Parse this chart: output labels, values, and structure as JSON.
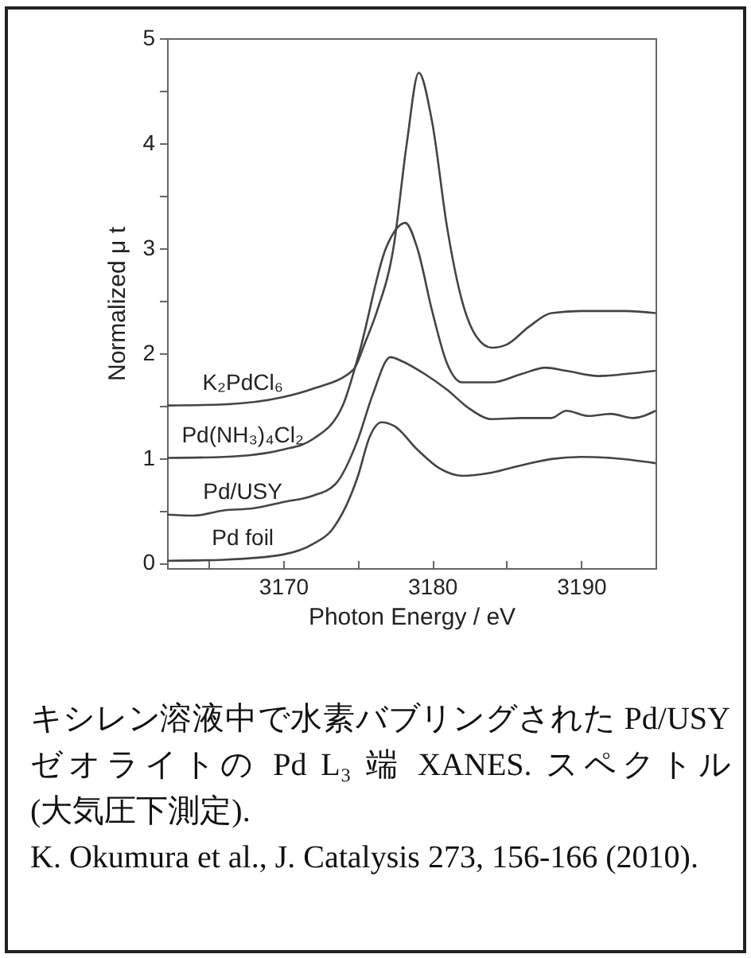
{
  "chart_data": {
    "type": "line",
    "xlabel": "Photon Energy /  eV",
    "ylabel": "Normalized μ t",
    "xlim": [
      3162.2,
      3195
    ],
    "ylim": [
      -0.05,
      5
    ],
    "xticks": [
      {
        "value": 3165,
        "label": null
      },
      3170,
      {
        "value": 3175,
        "label": null
      },
      3180,
      {
        "value": 3185,
        "label": null
      },
      3190
    ],
    "yticks": [
      0,
      {
        "value": 0.5,
        "label": null
      },
      1,
      {
        "value": 1.5,
        "label": null
      },
      2,
      {
        "value": 2.5,
        "label": null
      },
      3,
      {
        "value": 3.5,
        "label": null
      },
      4,
      {
        "value": 4.5,
        "label": null
      },
      5
    ],
    "grid": false,
    "legend": false,
    "series": [
      {
        "name": "K₂PdCl₆",
        "color": "#444444",
        "x": [
          3162.2,
          3166,
          3170,
          3172,
          3174.7,
          3175.5,
          3176.3,
          3177.4,
          3178.3,
          3179.1,
          3180,
          3181,
          3182,
          3183,
          3184,
          3185,
          3186.5,
          3188,
          3190,
          3193,
          3195
        ],
        "values": [
          1.5,
          1.51,
          1.58,
          1.66,
          1.84,
          2.1,
          2.4,
          3.0,
          4.0,
          4.67,
          4.2,
          3.2,
          2.5,
          2.15,
          2.05,
          2.08,
          2.25,
          2.38,
          2.4,
          2.4,
          2.38
        ]
      },
      {
        "name": "Pd(NH₃)₄Cl₂",
        "color": "#444444",
        "x": [
          3162.2,
          3166,
          3170,
          3172,
          3174,
          3175.1,
          3176.9,
          3178.2,
          3179,
          3180,
          3181,
          3182,
          3184,
          3186,
          3187.6,
          3189,
          3191.2,
          3193,
          3195
        ],
        "values": [
          1.0,
          1.01,
          1.08,
          1.18,
          1.5,
          2.0,
          3.0,
          3.24,
          3.0,
          2.4,
          1.9,
          1.72,
          1.72,
          1.8,
          1.86,
          1.83,
          1.78,
          1.8,
          1.83
        ]
      },
      {
        "name": "Pd/USY",
        "color": "#444444",
        "x": [
          3162.2,
          3164,
          3166,
          3168,
          3170,
          3172,
          3173.5,
          3175,
          3176,
          3177.2,
          3178,
          3179.5,
          3181,
          3182.5,
          3184,
          3186,
          3188,
          3189,
          3190.5,
          3192,
          3193.5,
          3195
        ],
        "values": [
          0.46,
          0.45,
          0.5,
          0.52,
          0.58,
          0.64,
          0.75,
          1.17,
          1.6,
          1.96,
          1.92,
          1.8,
          1.65,
          1.47,
          1.37,
          1.38,
          1.38,
          1.45,
          1.4,
          1.42,
          1.38,
          1.45
        ]
      },
      {
        "name": "Pd foil",
        "color": "#444444",
        "x": [
          3162.2,
          3166,
          3170,
          3172,
          3173.3,
          3175,
          3175.8,
          3176.6,
          3177.5,
          3179,
          3180.5,
          3182,
          3184,
          3186,
          3188,
          3190,
          3192,
          3195
        ],
        "values": [
          0.02,
          0.03,
          0.08,
          0.18,
          0.32,
          0.82,
          1.2,
          1.34,
          1.3,
          1.08,
          0.9,
          0.83,
          0.86,
          0.93,
          0.99,
          1.01,
          1.0,
          0.95
        ]
      }
    ],
    "annotations": [
      "キシレン溶液中で水素バブリングされた Pd/USY ゼオライトの Pd L₃ 端 XANES. スペクトル (大気圧下測定).",
      "K. Okumura et al., J. Catalysis 273, 156-166 (2010)."
    ]
  }
}
